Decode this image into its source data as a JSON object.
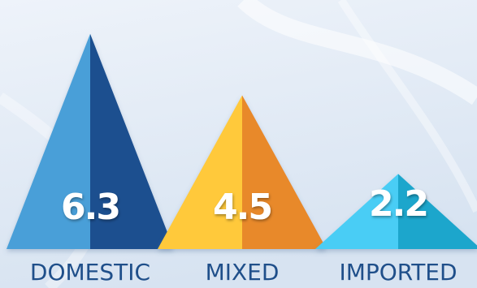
{
  "chart_data": {
    "type": "bar",
    "style": "pyramid",
    "categories": [
      "DOMESTIC",
      "MIXED",
      "IMPORTED"
    ],
    "values": [
      6.3,
      4.5,
      2.2
    ],
    "data_labels": [
      "6.3",
      "4.5",
      "2.2"
    ],
    "ylim": [
      0,
      7.1
    ],
    "grid": false,
    "legend": "none",
    "colors": {
      "DOMESTIC": {
        "light": "#4a9fd8",
        "dark": "#1c4f8f"
      },
      "MIXED": {
        "light": "#ffc93a",
        "dark": "#e8892c"
      },
      "IMPORTED": {
        "light": "#48cdf5",
        "dark": "#1aa6cc"
      }
    },
    "background": {
      "top": "#eef3fa",
      "bottom": "#d7e3f1"
    }
  }
}
